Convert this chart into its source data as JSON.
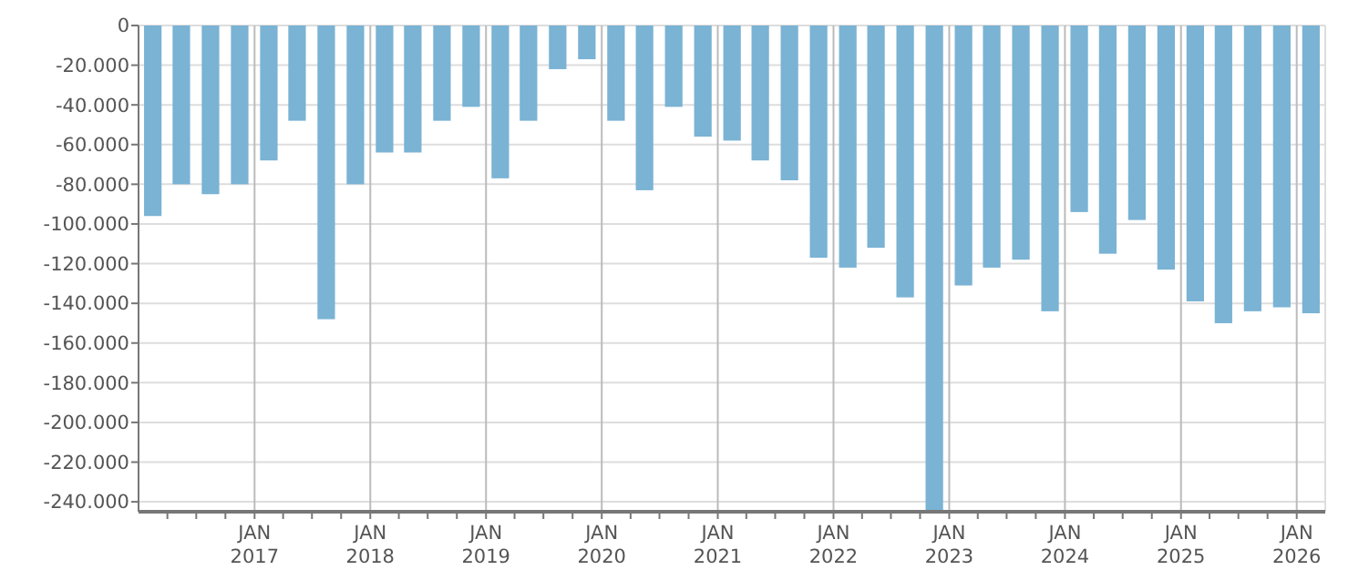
{
  "chart_data": {
    "type": "bar",
    "x": [
      "2016-02-15",
      "2016-05-15",
      "2016-08-15",
      "2016-11-15",
      "2017-02-15",
      "2017-05-15",
      "2017-08-15",
      "2017-11-15",
      "2018-02-15",
      "2018-05-15",
      "2018-08-15",
      "2018-11-15",
      "2019-02-15",
      "2019-05-15",
      "2019-08-15",
      "2019-11-15",
      "2020-02-15",
      "2020-05-15",
      "2020-08-15",
      "2020-11-15",
      "2021-02-15",
      "2021-05-15",
      "2021-08-15",
      "2021-11-15",
      "2022-02-15",
      "2022-05-15",
      "2022-08-15",
      "2022-11-15",
      "2023-02-15",
      "2023-05-15",
      "2023-08-15",
      "2023-11-15",
      "2024-02-15",
      "2024-05-15",
      "2024-08-15",
      "2024-11-15",
      "2025-02-15",
      "2025-05-15",
      "2025-08-15",
      "2025-11-15",
      "2026-02-15"
    ],
    "values": [
      -96000,
      -80000,
      -85000,
      -80000,
      -68000,
      -48000,
      -148000,
      -80000,
      -64000,
      -64000,
      -48000,
      -41000,
      -77000,
      -48000,
      -22000,
      -17000,
      -48000,
      -83000,
      -41000,
      -56000,
      -58000,
      -68000,
      -78000,
      -117000,
      -122000,
      -112000,
      -137000,
      -245000,
      -131000,
      -122000,
      -118000,
      -144000,
      -94000,
      -115000,
      -98000,
      -123000,
      -139000,
      -150000,
      -144000,
      -142000,
      -145000
    ],
    "color": "#7ab3d4",
    "ylim": [
      -245000,
      0
    ],
    "yticks": [
      {
        "value": -240000,
        "label": "-240.000"
      },
      {
        "value": -220000,
        "label": "-220.000"
      },
      {
        "value": -200000,
        "label": "-200.000"
      },
      {
        "value": -180000,
        "label": "-180.000"
      },
      {
        "value": -160000,
        "label": "-160.000"
      },
      {
        "value": -140000,
        "label": "-140.000"
      },
      {
        "value": -120000,
        "label": "-120.000"
      },
      {
        "value": -100000,
        "label": "-100.000"
      },
      {
        "value": -80000,
        "label": "-80.000"
      },
      {
        "value": -60000,
        "label": "-60.000"
      },
      {
        "value": -40000,
        "label": "-40.000"
      },
      {
        "value": -20000,
        "label": "-20.000"
      },
      0
    ],
    "xlim": [
      "2016-01-01",
      "2026-04-01"
    ],
    "xticks": [
      {
        "value": "2016-04-01",
        "label": null
      },
      {
        "value": "2016-07-01",
        "label": null
      },
      {
        "value": "2016-10-01",
        "label": null
      },
      {
        "value": "2017-01-01",
        "label": "JAN 2017"
      },
      {
        "value": "2017-04-01",
        "label": null
      },
      {
        "value": "2017-07-01",
        "label": null
      },
      {
        "value": "2017-10-01",
        "label": null
      },
      {
        "value": "2018-01-01",
        "label": "JAN 2018"
      },
      {
        "value": "2018-04-01",
        "label": null
      },
      {
        "value": "2018-07-01",
        "label": null
      },
      {
        "value": "2018-10-01",
        "label": null
      },
      {
        "value": "2019-01-01",
        "label": "JAN 2019"
      },
      {
        "value": "2019-04-01",
        "label": null
      },
      {
        "value": "2019-07-01",
        "label": null
      },
      {
        "value": "2019-10-01",
        "label": null
      },
      {
        "value": "2020-01-01",
        "label": "JAN 2020"
      },
      {
        "value": "2020-04-01",
        "label": null
      },
      {
        "value": "2020-07-01",
        "label": null
      },
      {
        "value": "2020-10-01",
        "label": null
      },
      {
        "value": "2021-01-01",
        "label": "JAN 2021"
      },
      {
        "value": "2021-04-01",
        "label": null
      },
      {
        "value": "2021-07-01",
        "label": null
      },
      {
        "value": "2021-10-01",
        "label": null
      },
      {
        "value": "2022-01-01",
        "label": "JAN 2022"
      },
      {
        "value": "2022-04-01",
        "label": null
      },
      {
        "value": "2022-07-01",
        "label": null
      },
      {
        "value": "2022-10-01",
        "label": null
      },
      {
        "value": "2023-01-01",
        "label": "JAN 2023"
      },
      {
        "value": "2023-04-01",
        "label": null
      },
      {
        "value": "2023-07-01",
        "label": null
      },
      {
        "value": "2023-10-01",
        "label": null
      },
      {
        "value": "2024-01-01",
        "label": "JAN 2024"
      },
      {
        "value": "2024-04-01",
        "label": null
      },
      {
        "value": "2024-07-01",
        "label": null
      },
      {
        "value": "2024-10-01",
        "label": null
      },
      {
        "value": "2025-01-01",
        "label": "JAN 2025"
      },
      {
        "value": "2025-04-01",
        "label": null
      },
      {
        "value": "2025-07-01",
        "label": null
      },
      {
        "value": "2025-10-01",
        "label": null
      },
      {
        "value": "2026-01-01",
        "label": "JAN 2026"
      }
    ],
    "grid": true
  }
}
